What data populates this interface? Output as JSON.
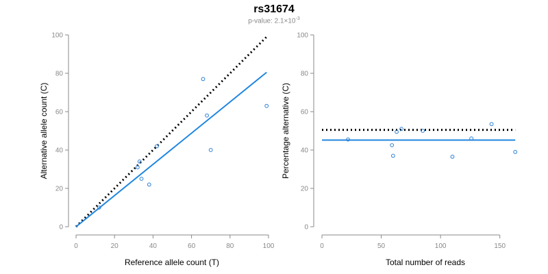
{
  "title": "rs31674",
  "subtitle": {
    "prefix": "p-value: 2.1×10",
    "exponent": "-3"
  },
  "colors": {
    "points": "#2a7fd4",
    "fit": "#1f86e0",
    "reference": "#000000",
    "axis": "#888888"
  },
  "chart_data": [
    {
      "type": "scatter",
      "xlabel": "Reference allele count (T)",
      "ylabel": "Alternative allele count (C)",
      "xlim": [
        0,
        100
      ],
      "ylim": [
        0,
        100
      ],
      "xticks": [
        "0",
        "20",
        "40",
        "60",
        "80",
        "100"
      ],
      "yticks": [
        "0",
        "20",
        "40",
        "60",
        "80",
        "100"
      ],
      "points": [
        {
          "x": 12,
          "y": 10
        },
        {
          "x": 32,
          "y": 31
        },
        {
          "x": 33,
          "y": 34
        },
        {
          "x": 34,
          "y": 25
        },
        {
          "x": 38,
          "y": 22
        },
        {
          "x": 42,
          "y": 42
        },
        {
          "x": 66,
          "y": 77
        },
        {
          "x": 68,
          "y": 58
        },
        {
          "x": 70,
          "y": 40
        },
        {
          "x": 99,
          "y": 63
        }
      ],
      "fit_line": {
        "x": [
          0,
          99
        ],
        "y": [
          0,
          80.5
        ]
      },
      "reference_line": {
        "x": [
          0,
          99
        ],
        "y": [
          0,
          99
        ]
      }
    },
    {
      "type": "scatter",
      "xlabel": "Total number of reads",
      "ylabel": "Percentage alternative (C)",
      "xlim": [
        0,
        160
      ],
      "ylim": [
        0,
        100
      ],
      "xticks": [
        "0",
        "50",
        "100",
        "150"
      ],
      "yticks": [
        "0",
        "20",
        "40",
        "60",
        "80",
        "100"
      ],
      "points": [
        {
          "x": 22,
          "y": 45.5
        },
        {
          "x": 59,
          "y": 42.5
        },
        {
          "x": 60,
          "y": 37
        },
        {
          "x": 63,
          "y": 49.5
        },
        {
          "x": 67,
          "y": 51
        },
        {
          "x": 85,
          "y": 50
        },
        {
          "x": 110,
          "y": 36.5
        },
        {
          "x": 126,
          "y": 46
        },
        {
          "x": 143,
          "y": 53.5
        },
        {
          "x": 163,
          "y": 39
        }
      ],
      "fit_line": {
        "x": [
          0,
          163
        ],
        "y": [
          45.2,
          45.2
        ]
      },
      "reference_line": {
        "x": [
          0,
          163
        ],
        "y": [
          50.5,
          50.5
        ]
      }
    }
  ]
}
